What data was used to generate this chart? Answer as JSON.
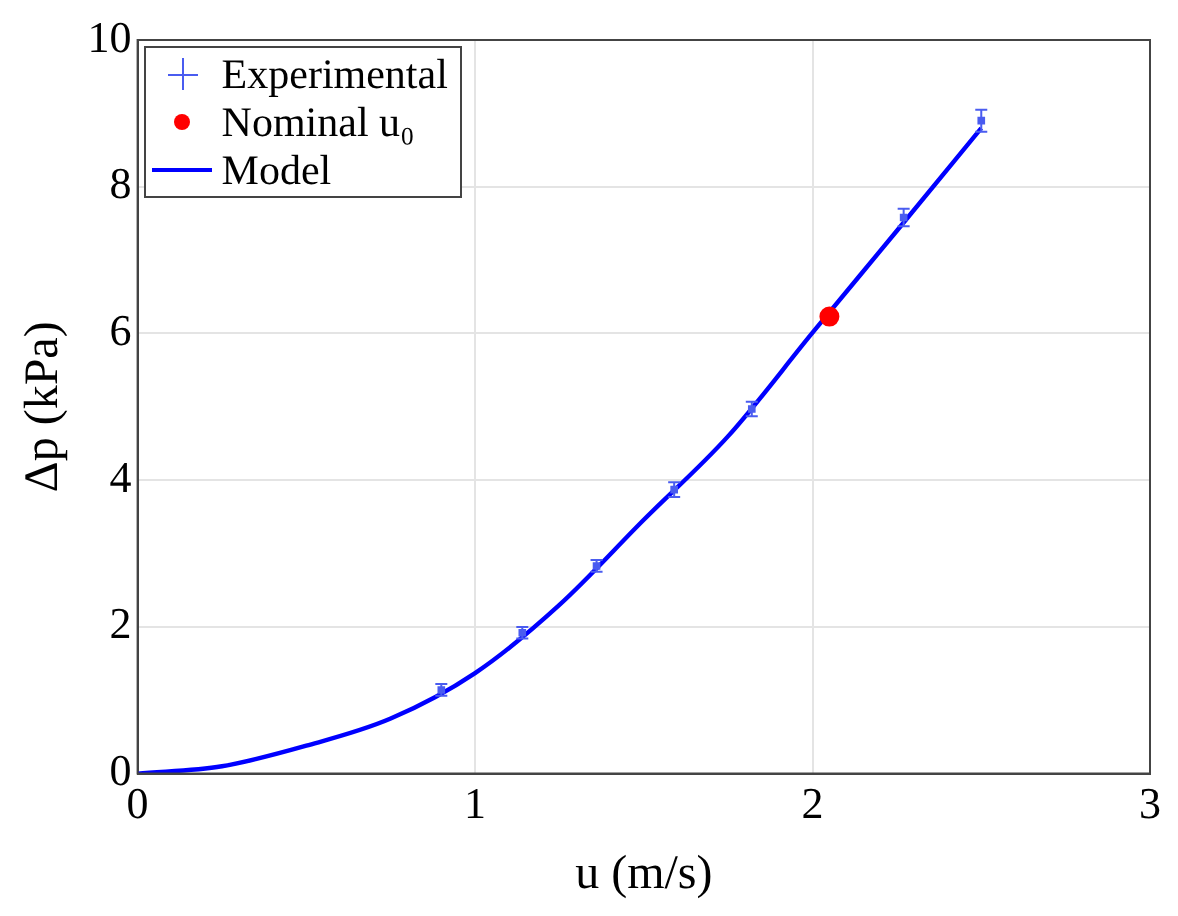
{
  "chart_data": {
    "type": "scatter",
    "xlabel": "u (m/s)",
    "ylabel": "Δp (kPa)",
    "xlim": [
      0,
      3
    ],
    "xticks": [
      0,
      1,
      2,
      3
    ],
    "ylim": [
      0,
      10
    ],
    "yticks": [
      0,
      2,
      4,
      6,
      8,
      10
    ],
    "grid": true,
    "legend": "top left",
    "series": [
      {
        "name": "Experimental",
        "type": "scatter",
        "marker": "square",
        "color": "#4a5cf0",
        "x": [
          0.9,
          1.14,
          1.36,
          1.59,
          1.82,
          2.27,
          2.5
        ],
        "values": [
          1.14,
          1.92,
          2.83,
          3.87,
          4.97,
          7.58,
          8.9
        ],
        "errors": [
          0.08,
          0.08,
          0.08,
          0.1,
          0.1,
          0.12,
          0.15
        ]
      },
      {
        "name": "Nominal u₀",
        "type": "scatter",
        "marker": "circle",
        "color": "#ff0000",
        "x": [
          2.05
        ],
        "values": [
          6.23
        ]
      },
      {
        "name": "Model",
        "type": "line",
        "marker": "none",
        "line_style": "solid",
        "color": "#0000ff",
        "x": [
          0,
          0.25,
          0.5,
          0.75,
          1,
          1.25,
          1.5,
          1.75,
          2,
          2.25,
          2.5
        ],
        "values": [
          0,
          0.1,
          0.38,
          0.75,
          1.37,
          2.3,
          3.46,
          4.6,
          6.01,
          7.4,
          8.8
        ]
      }
    ]
  }
}
